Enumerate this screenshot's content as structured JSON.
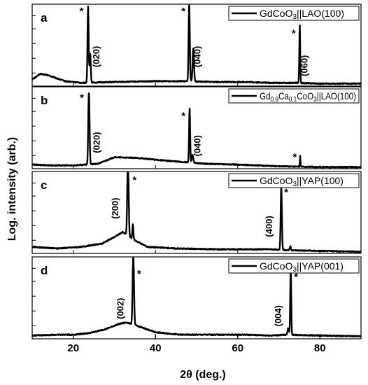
{
  "chart_data": {
    "type": "line",
    "xlabel": "2θ (deg.)",
    "ylabel": "Log. intensity (arb.)",
    "xlim": [
      10,
      90
    ],
    "x_ticks": [
      "20",
      "40",
      "60",
      "80"
    ],
    "y_scale": "log",
    "panels": [
      {
        "label": "a",
        "legend": "GdCoO3||LAO(100)",
        "legend_parts": [
          {
            "text": "GdCoO",
            "sub": false
          },
          {
            "text": "3",
            "sub": true
          },
          {
            "text": "||LAO(100)",
            "sub": false
          }
        ],
        "baseline": 0.08,
        "background": [
          [
            10,
            0.08
          ],
          [
            12,
            0.15
          ],
          [
            14,
            0.13
          ],
          [
            18,
            0.06
          ],
          [
            22,
            0.04
          ],
          [
            30,
            0.05
          ],
          [
            40,
            0.06
          ],
          [
            46,
            0.06
          ],
          [
            55,
            0.05
          ],
          [
            62,
            0.05
          ],
          [
            68,
            0.04
          ],
          [
            74,
            0.04
          ],
          [
            80,
            0.03
          ],
          [
            86,
            0.03
          ],
          [
            90,
            0.03
          ]
        ],
        "peaks": [
          {
            "x": 23.6,
            "height": 0.93,
            "width": 0.28
          },
          {
            "x": 24.1,
            "height": 0.36,
            "width": 0.3
          },
          {
            "x": 48.2,
            "height": 0.96,
            "width": 0.3
          },
          {
            "x": 49.2,
            "height": 0.4,
            "width": 0.35
          },
          {
            "x": 75.1,
            "height": 0.71,
            "width": 0.22
          }
        ],
        "stars": [
          {
            "x": 22.0,
            "y": 0.95
          },
          {
            "x": 46.8,
            "y": 0.95
          },
          {
            "x": 73.6,
            "y": 0.68
          }
        ],
        "annotations": [
          {
            "x": 26.3,
            "y": 0.36,
            "text": "(020)"
          },
          {
            "x": 50.9,
            "y": 0.36,
            "text": "(040)"
          },
          {
            "x": 77.0,
            "y": 0.25,
            "text": "(060)"
          }
        ]
      },
      {
        "label": "b",
        "legend": "Gd0.9Ca0.1CoO3||LAO(100)",
        "legend_parts": [
          {
            "text": "Gd",
            "sub": false
          },
          {
            "text": "0.9",
            "sub": true
          },
          {
            "text": "Ca",
            "sub": false
          },
          {
            "text": "0.1",
            "sub": true
          },
          {
            "text": "CoO",
            "sub": false
          },
          {
            "text": "3",
            "sub": true
          },
          {
            "text": "||LAO(100)",
            "sub": false
          }
        ],
        "baseline": 0.08,
        "background": [
          [
            10,
            0.05
          ],
          [
            15,
            0.04
          ],
          [
            20,
            0.04
          ],
          [
            26,
            0.06
          ],
          [
            30,
            0.14
          ],
          [
            36,
            0.13
          ],
          [
            42,
            0.1
          ],
          [
            47,
            0.08
          ],
          [
            52,
            0.06
          ],
          [
            60,
            0.05
          ],
          [
            70,
            0.03
          ],
          [
            80,
            0.02
          ],
          [
            90,
            0.02
          ]
        ],
        "peaks": [
          {
            "x": 23.8,
            "height": 0.9,
            "width": 0.32
          },
          {
            "x": 48.3,
            "height": 0.67,
            "width": 0.26
          },
          {
            "x": 49.0,
            "height": 0.1,
            "width": 0.35
          },
          {
            "x": 75.2,
            "height": 0.13,
            "width": 0.15
          }
        ],
        "stars": [
          {
            "x": 22.1,
            "y": 0.9
          },
          {
            "x": 46.8,
            "y": 0.68
          },
          {
            "x": 73.9,
            "y": 0.18
          }
        ],
        "annotations": [
          {
            "x": 26.4,
            "y": 0.32,
            "text": "(020)"
          },
          {
            "x": 50.9,
            "y": 0.28,
            "text": "(040)"
          }
        ]
      },
      {
        "label": "c",
        "legend": "GdCoO3||YAP(100)",
        "legend_parts": [
          {
            "text": "GdCoO",
            "sub": false
          },
          {
            "text": "3",
            "sub": true
          },
          {
            "text": "||YAP(100)",
            "sub": false
          }
        ],
        "baseline": 0.05,
        "background": [
          [
            10,
            0.08
          ],
          [
            16,
            0.06
          ],
          [
            22,
            0.08
          ],
          [
            27,
            0.12
          ],
          [
            30,
            0.2
          ],
          [
            32,
            0.26
          ],
          [
            35,
            0.16
          ],
          [
            38,
            0.08
          ],
          [
            45,
            0.06
          ],
          [
            55,
            0.05
          ],
          [
            62,
            0.05
          ],
          [
            68,
            0.05
          ],
          [
            72,
            0.04
          ],
          [
            80,
            0.03
          ],
          [
            90,
            0.02
          ]
        ],
        "peaks": [
          {
            "x": 33.3,
            "height": 0.95,
            "width": 0.35
          },
          {
            "x": 34.5,
            "height": 0.18,
            "width": 0.25
          },
          {
            "x": 70.6,
            "height": 0.78,
            "width": 0.3
          },
          {
            "x": 72.8,
            "height": 0.05,
            "width": 0.3
          }
        ],
        "stars": [
          {
            "x": 34.9,
            "y": 0.93
          },
          {
            "x": 71.8,
            "y": 0.78
          }
        ],
        "annotations": [
          {
            "x": 30.9,
            "y": 0.55,
            "text": "(200)"
          },
          {
            "x": 68.4,
            "y": 0.33,
            "text": "(400)"
          }
        ]
      },
      {
        "label": "d",
        "legend": "GdCoO3||YAP(001)",
        "legend_parts": [
          {
            "text": "GdCoO",
            "sub": false
          },
          {
            "text": "3",
            "sub": true
          },
          {
            "text": "||YAP(001)",
            "sub": false
          }
        ],
        "baseline": 0.05,
        "background": [
          [
            10,
            0.04
          ],
          [
            16,
            0.05
          ],
          [
            20,
            0.05
          ],
          [
            24,
            0.07
          ],
          [
            28,
            0.12
          ],
          [
            31,
            0.18
          ],
          [
            33,
            0.2
          ],
          [
            36,
            0.15
          ],
          [
            40,
            0.08
          ],
          [
            46,
            0.05
          ],
          [
            55,
            0.05
          ],
          [
            62,
            0.05
          ],
          [
            68,
            0.04
          ],
          [
            72,
            0.05
          ],
          [
            80,
            0.04
          ],
          [
            90,
            0.03
          ]
        ],
        "peaks": [
          {
            "x": 34.6,
            "height": 0.86,
            "width": 0.35
          },
          {
            "x": 72.9,
            "height": 0.8,
            "width": 0.25
          },
          {
            "x": 72.3,
            "height": 0.08,
            "width": 0.35
          }
        ],
        "stars": [
          {
            "x": 36.0,
            "y": 0.83
          },
          {
            "x": 74.2,
            "y": 0.79
          }
        ],
        "annotations": [
          {
            "x": 32.2,
            "y": 0.37,
            "text": "(002)"
          },
          {
            "x": 70.6,
            "y": 0.28,
            "text": "(004)"
          }
        ]
      }
    ]
  }
}
